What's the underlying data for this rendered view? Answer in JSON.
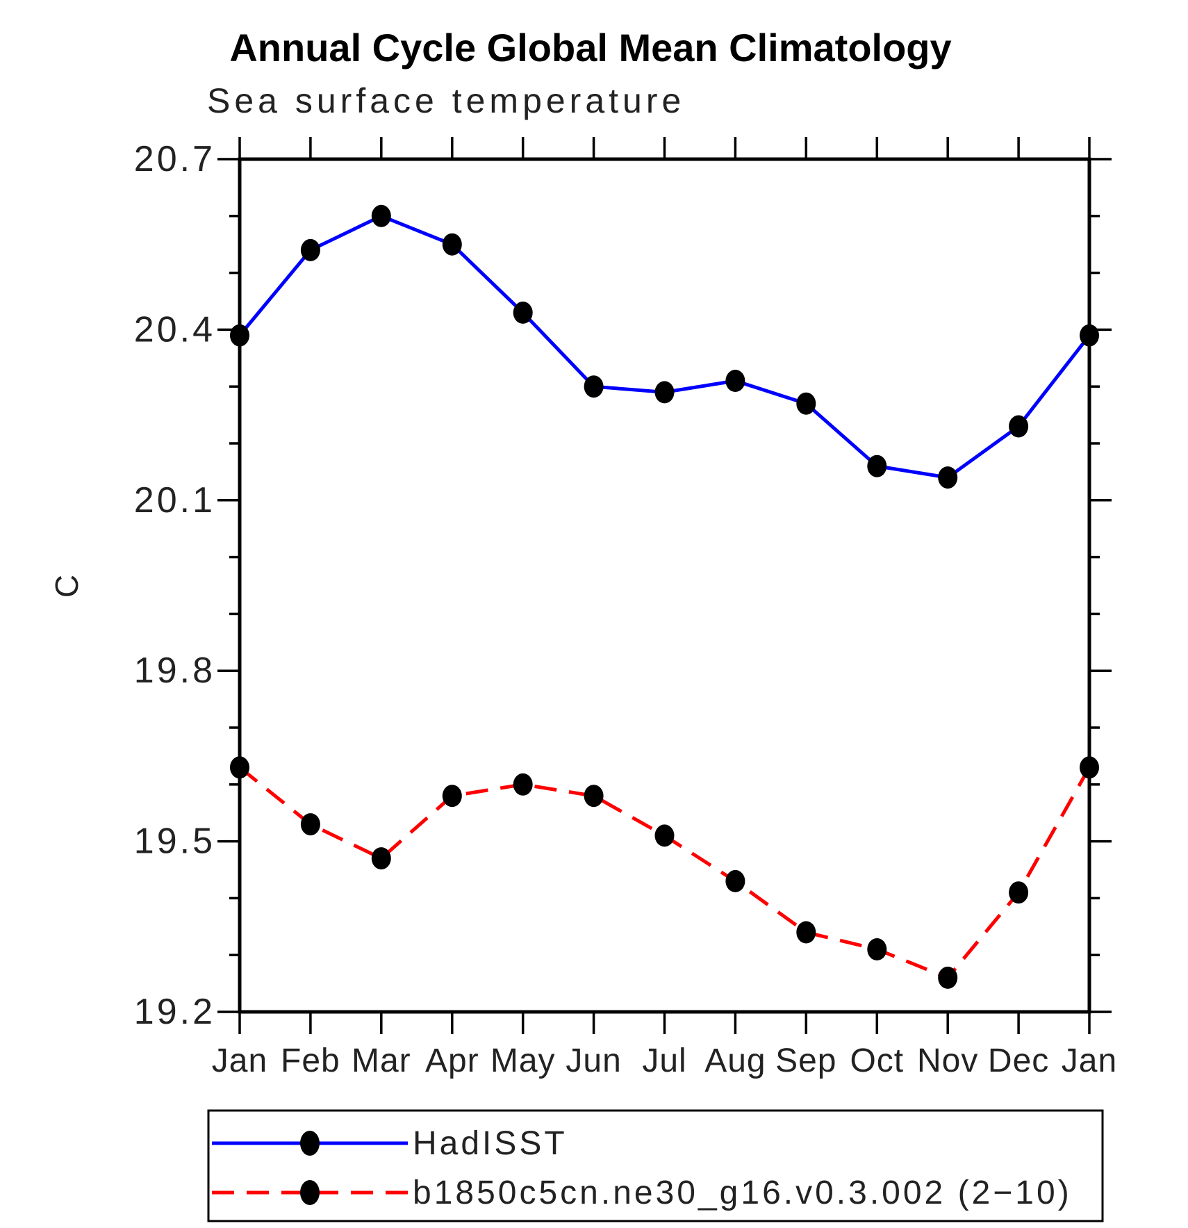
{
  "chart_data": {
    "type": "line",
    "title": "Annual Cycle Global Mean Climatology",
    "subtitle": "Sea surface temperature",
    "ylabel": "C",
    "xlabel": "",
    "grid": false,
    "legend_position": "bottom",
    "categories": [
      "Jan",
      "Feb",
      "Mar",
      "Apr",
      "May",
      "Jun",
      "Jul",
      "Aug",
      "Sep",
      "Oct",
      "Nov",
      "Dec",
      "Jan"
    ],
    "ylim": [
      19.2,
      20.7
    ],
    "ytick_major_values": [
      20.7,
      20.4,
      20.1,
      19.8,
      19.5,
      19.2
    ],
    "ytick_major_labels": [
      "20.7",
      "20.4",
      "20.1",
      "19.8",
      "19.5",
      "19.2"
    ],
    "ytick_minor_step": 0.1,
    "axis_color": "#000000",
    "series": [
      {
        "name": "HadISST",
        "color": "#0000fe",
        "style": "solid",
        "marker": "circle",
        "marker_color": "#000000",
        "values": [
          20.39,
          20.54,
          20.6,
          20.55,
          20.43,
          20.3,
          20.29,
          20.31,
          20.27,
          20.16,
          20.14,
          20.23,
          20.39
        ]
      },
      {
        "name": "b1850c5cn.ne30_g16.v0.3.002 (2−10)",
        "color": "#fe0000",
        "style": "dashed",
        "marker": "circle",
        "marker_color": "#000000",
        "values": [
          19.63,
          19.53,
          19.47,
          19.58,
          19.6,
          19.58,
          19.51,
          19.43,
          19.34,
          19.31,
          19.26,
          19.41,
          19.63
        ]
      }
    ]
  }
}
